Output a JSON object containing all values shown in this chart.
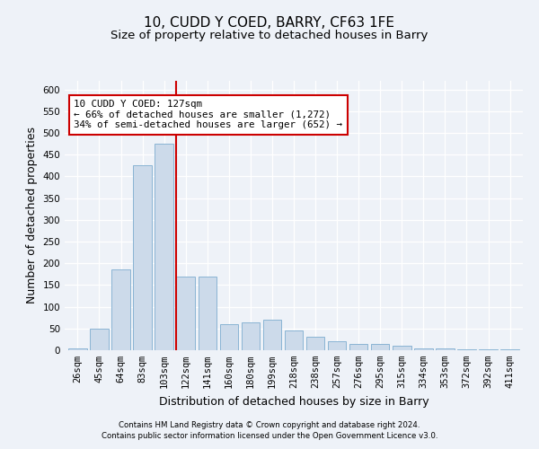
{
  "title": "10, CUDD Y COED, BARRY, CF63 1FE",
  "subtitle": "Size of property relative to detached houses in Barry",
  "xlabel": "Distribution of detached houses by size in Barry",
  "ylabel": "Number of detached properties",
  "categories": [
    "26sqm",
    "45sqm",
    "64sqm",
    "83sqm",
    "103sqm",
    "122sqm",
    "141sqm",
    "160sqm",
    "180sqm",
    "199sqm",
    "218sqm",
    "238sqm",
    "257sqm",
    "276sqm",
    "295sqm",
    "315sqm",
    "334sqm",
    "353sqm",
    "372sqm",
    "392sqm",
    "411sqm"
  ],
  "values": [
    5,
    50,
    185,
    425,
    475,
    170,
    170,
    60,
    65,
    70,
    45,
    30,
    20,
    15,
    15,
    10,
    5,
    5,
    3,
    3,
    2
  ],
  "bar_color": "#ccdaea",
  "bar_edge_color": "#8ab4d4",
  "highlight_index": 5,
  "highlight_line_color": "#cc0000",
  "annotation_text": "10 CUDD Y COED: 127sqm\n← 66% of detached houses are smaller (1,272)\n34% of semi-detached houses are larger (652) →",
  "annotation_box_color": "#ffffff",
  "annotation_box_edge": "#cc0000",
  "footer1": "Contains HM Land Registry data © Crown copyright and database right 2024.",
  "footer2": "Contains public sector information licensed under the Open Government Licence v3.0.",
  "ylim": [
    0,
    620
  ],
  "yticks": [
    0,
    50,
    100,
    150,
    200,
    250,
    300,
    350,
    400,
    450,
    500,
    550,
    600
  ],
  "background_color": "#eef2f8",
  "grid_color": "#ffffff",
  "title_fontsize": 11,
  "subtitle_fontsize": 9.5,
  "axis_label_fontsize": 9,
  "tick_fontsize": 7.5
}
